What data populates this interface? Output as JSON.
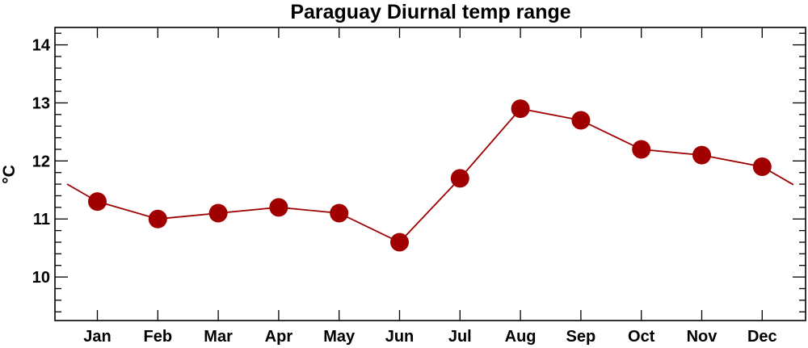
{
  "chart_data": {
    "type": "line",
    "title": "Paraguay Diurnal temp range",
    "xlabel": "",
    "ylabel": "°C",
    "categories": [
      "Jan",
      "Feb",
      "Mar",
      "Apr",
      "May",
      "Jun",
      "Jul",
      "Aug",
      "Sep",
      "Oct",
      "Nov",
      "Dec"
    ],
    "series": [
      {
        "values": [
          11.3,
          11.0,
          11.1,
          11.2,
          11.1,
          10.6,
          11.7,
          12.9,
          12.7,
          12.2,
          12.1,
          11.9
        ]
      }
    ],
    "ylim": [
      9.25,
      14.3
    ],
    "yticks": [
      "10",
      "11",
      "12",
      "13",
      "14"
    ],
    "line_color": "#a00000",
    "marker_color": "#a00000",
    "grid": false,
    "legend": "none"
  }
}
